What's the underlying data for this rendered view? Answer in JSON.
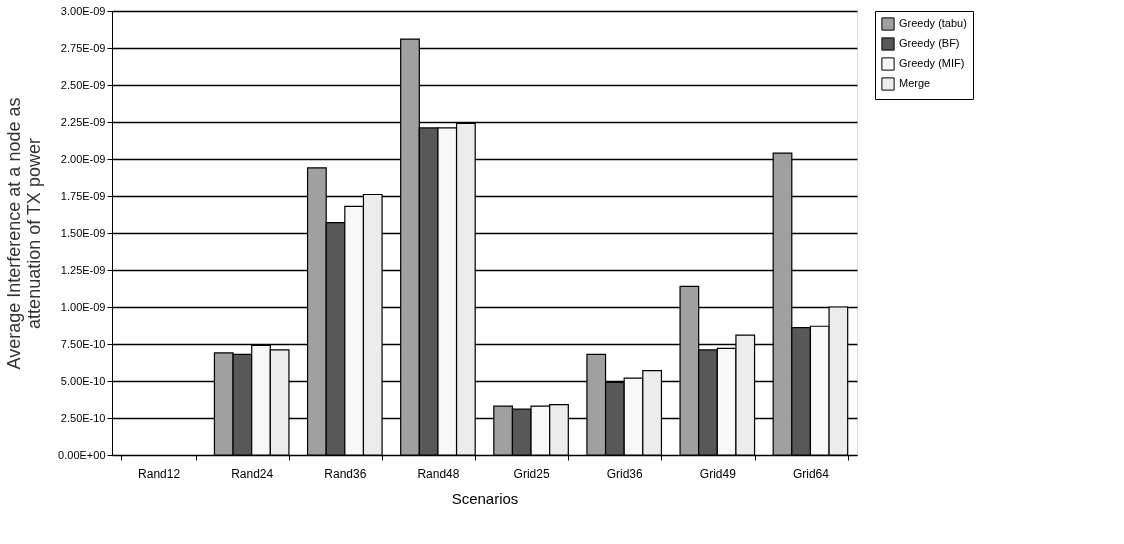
{
  "chart_data": {
    "type": "bar",
    "xlabel": "Scenarios",
    "ylabel": "Average Interference at a node as\nattenuation of TX power",
    "categories": [
      "Rand12",
      "Rand24",
      "Rand36",
      "Rand48",
      "Grid25",
      "Grid36",
      "Grid49",
      "Grid64"
    ],
    "series": [
      {
        "name": "Greedy (tabu)",
        "color": "#a0a0a0",
        "values": [
          null,
          6.9e-10,
          1.94e-09,
          2.81e-09,
          3.3e-10,
          6.8e-10,
          1.14e-09,
          2.04e-09
        ]
      },
      {
        "name": "Greedy (BF)",
        "color": "#585858",
        "values": [
          null,
          6.8e-10,
          1.57e-09,
          2.21e-09,
          3.1e-10,
          4.9e-10,
          7.1e-10,
          8.6e-10
        ]
      },
      {
        "name": "Greedy (MIF)",
        "color": "#f8f8f8",
        "values": [
          null,
          7.4e-10,
          1.68e-09,
          2.21e-09,
          3.3e-10,
          5.2e-10,
          7.2e-10,
          8.7e-10
        ]
      },
      {
        "name": "Merge",
        "color": "#ececec",
        "values": [
          null,
          7.1e-10,
          1.76e-09,
          2.24e-09,
          3.4e-10,
          5.7e-10,
          8.1e-10,
          1e-09
        ]
      }
    ],
    "ylim": [
      0,
      3e-09
    ],
    "yticks": [
      {
        "value": 0,
        "label": "0.00E+00"
      },
      {
        "value": 2.5e-10,
        "label": "2.50E-10"
      },
      {
        "value": 5e-10,
        "label": "5.00E-10"
      },
      {
        "value": 7.5e-10,
        "label": "7.50E-10"
      },
      {
        "value": 1e-09,
        "label": "1.00E-09"
      },
      {
        "value": 1.25e-09,
        "label": "1.25E-09"
      },
      {
        "value": 1.5e-09,
        "label": "1.50E-09"
      },
      {
        "value": 1.75e-09,
        "label": "1.75E-09"
      },
      {
        "value": 2e-09,
        "label": "2.00E-09"
      },
      {
        "value": 2.25e-09,
        "label": "2.25E-09"
      },
      {
        "value": 2.5e-09,
        "label": "2.50E-09"
      },
      {
        "value": 2.75e-09,
        "label": "2.75E-09"
      },
      {
        "value": 3e-09,
        "label": "3.00E-09"
      }
    ],
    "grid": "y",
    "legend": "right"
  }
}
